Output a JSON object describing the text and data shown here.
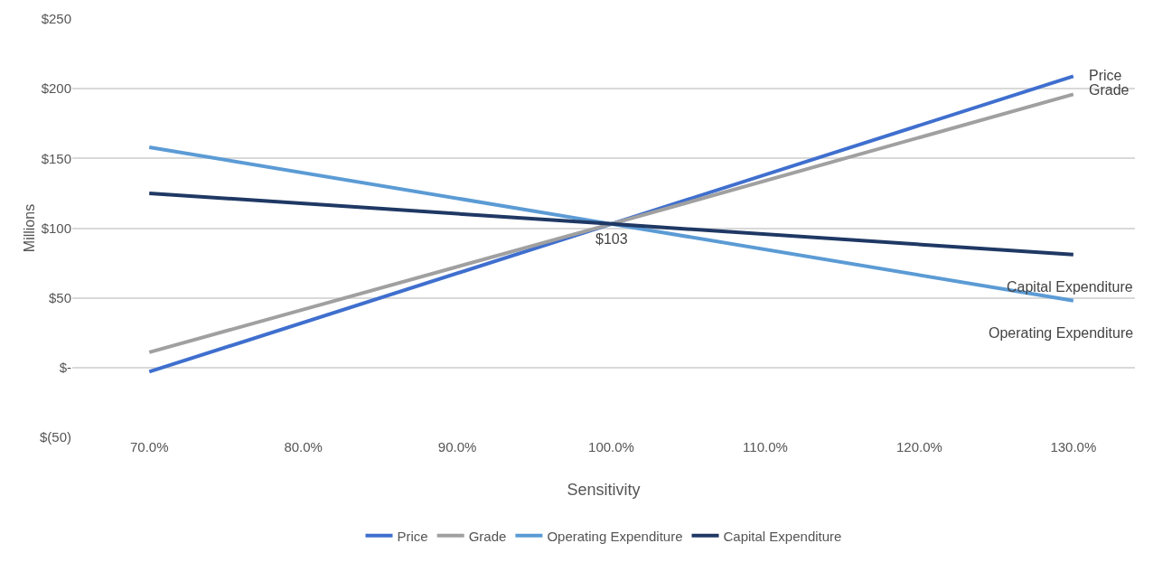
{
  "chart_data": {
    "type": "line",
    "xlabel": "Sensitivity",
    "ylabel": "Millions",
    "x": [
      70,
      100,
      130
    ],
    "series": [
      {
        "name": "Price",
        "color": "#3f6fce",
        "values": [
          -3,
          103,
          209
        ]
      },
      {
        "name": "Grade",
        "color": "#a0a0a0",
        "values": [
          11,
          103,
          196
        ]
      },
      {
        "name": "Operating Expenditure",
        "color": "#5b9bd5",
        "values": [
          158,
          103,
          48
        ]
      },
      {
        "name": "Capital Expenditure",
        "color": "#1f3864",
        "values": [
          125,
          103,
          81
        ]
      }
    ],
    "xlim": [
      65,
      134
    ],
    "xticks": [
      {
        "value": 70,
        "label": "70.0%"
      },
      {
        "value": 80,
        "label": "80.0%"
      },
      {
        "value": 90,
        "label": "90.0%"
      },
      {
        "value": 100,
        "label": "100.0%"
      },
      {
        "value": 110,
        "label": "110.0%"
      },
      {
        "value": 120,
        "label": "120.0%"
      },
      {
        "value": 130,
        "label": "130.0%"
      }
    ],
    "ylim": [
      -50,
      250
    ],
    "yticks": [
      {
        "value": -50,
        "label": "$(50)"
      },
      {
        "value": 0,
        "label": "$-"
      },
      {
        "value": 50,
        "label": "$50"
      },
      {
        "value": 100,
        "label": "$100"
      },
      {
        "value": 150,
        "label": "$150"
      },
      {
        "value": 200,
        "label": "$200"
      },
      {
        "value": 250,
        "label": "$250"
      }
    ],
    "annotations": [
      {
        "text": "$103",
        "x": 100,
        "y": 103
      },
      "Price",
      "Grade",
      "Capital Expenditure",
      "Operating Expenditure"
    ],
    "grid": "y",
    "legend": "bottom",
    "marker": "none",
    "line_style": "solid"
  }
}
